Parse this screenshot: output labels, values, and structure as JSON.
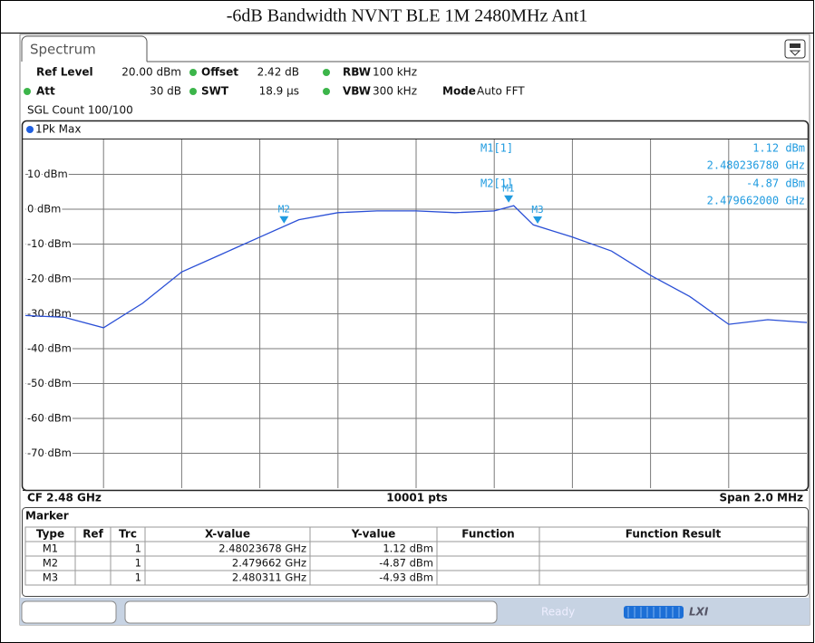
{
  "header": {
    "title": "-6dB Bandwidth NVNT BLE 1M 2480MHz Ant1"
  },
  "tab": "Spectrum",
  "settings": {
    "row1": [
      {
        "label": "Ref Level",
        "value": "20.00 dBm"
      },
      {
        "label": "Offset",
        "value": "2.42 dB"
      },
      {
        "label": "RBW",
        "value": "100 kHz"
      }
    ],
    "row2": [
      {
        "label": "Att",
        "value": "30 dB"
      },
      {
        "label": "SWT",
        "value": "18.9 µs"
      },
      {
        "label": "VBW",
        "value": "300 kHz"
      },
      {
        "label": "Mode",
        "value": "Auto FFT"
      }
    ],
    "count": "SGL Count 100/100"
  },
  "chart_data": {
    "type": "line",
    "xlim": [
      2.479,
      2.481
    ],
    "ylim": [
      -80,
      20
    ],
    "yticks": [
      {
        "value": 10,
        "label": "10 dBm"
      },
      {
        "value": 0,
        "label": "0 dBm"
      },
      {
        "value": -10,
        "label": "-10 dBm"
      },
      {
        "value": -20,
        "label": "-20 dBm"
      },
      {
        "value": -30,
        "label": "-30 dBm"
      },
      {
        "value": -40,
        "label": "-40 dBm"
      },
      {
        "value": -50,
        "label": "-50 dBm"
      },
      {
        "value": -60,
        "label": "-60 dBm"
      },
      {
        "value": -70,
        "label": "-70 dBm"
      }
    ],
    "grid": true,
    "x": [
      2.479,
      2.4791,
      2.4792,
      2.4793,
      2.4794,
      2.4795,
      2.4796,
      2.4797,
      2.4798,
      2.4799,
      2.48,
      2.4801,
      2.4802,
      2.48025,
      2.4803,
      2.4804,
      2.4805,
      2.4806,
      2.4807,
      2.4808,
      2.4809,
      2.481
    ],
    "series": [
      {
        "name": "1Pk Max",
        "color": "#2a4fd6",
        "values": [
          -30.5,
          -31,
          -34,
          -27,
          -18,
          -13,
          -8,
          -3,
          -1,
          -0.5,
          -0.5,
          -1,
          -0.5,
          1,
          -4.5,
          -8,
          -12,
          -19,
          -25,
          -33,
          -31.7,
          -32.5
        ]
      }
    ],
    "markers": [
      {
        "label": "M1",
        "x": 2.48023678,
        "y": 1.12
      },
      {
        "label": "M2",
        "x": 2.479662,
        "y": -4.87
      },
      {
        "label": "M3",
        "x": 2.480311,
        "y": -4.93
      }
    ],
    "marker_readout": [
      {
        "name": "M1[1]",
        "level": "1.12 dBm",
        "freq": "2.480236780 GHz"
      },
      {
        "name": "M2[1]",
        "level": "-4.87 dBm",
        "freq": "2.479662000 GHz"
      }
    ],
    "footer": {
      "center_freq": "CF 2.48 GHz",
      "points": "10001 pts",
      "span": "Span 2.0 MHz"
    }
  },
  "table": {
    "title": "Marker",
    "columns": [
      "Type",
      "Ref",
      "Trc",
      "X-value",
      "Y-value",
      "Function",
      "Function Result"
    ],
    "rows": [
      {
        "type": "M1",
        "trc": "1",
        "x": "2.48023678 GHz",
        "y": "1.12 dBm"
      },
      {
        "type": "M2",
        "trc": "1",
        "x": "2.479662 GHz",
        "y": "-4.87 dBm"
      },
      {
        "type": "M3",
        "trc": "1",
        "x": "2.480311 GHz",
        "y": "-4.93 dBm"
      }
    ]
  },
  "status": "Ready"
}
